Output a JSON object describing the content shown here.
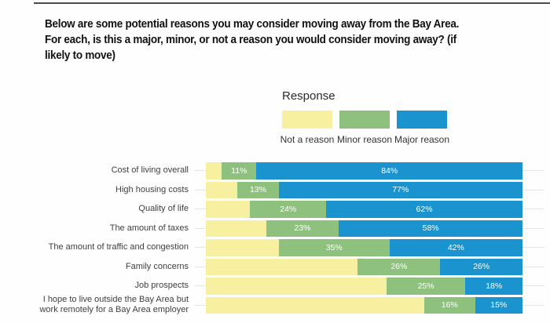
{
  "title": "Below are some potential reasons you may consider moving away from the Bay Area.\nFor each, is this a major, minor, or not a reason you would consider moving away? (if\nlikely to move)",
  "legend": {
    "title": "Response",
    "items": [
      {
        "label": "Not a reason",
        "color": "#f6f0a0"
      },
      {
        "label": "Minor reason",
        "color": "#8ec17e"
      },
      {
        "label": "Major reason",
        "color": "#1a93ce"
      }
    ]
  },
  "chart_data": {
    "type": "bar",
    "orientation": "horizontal",
    "stacked": true,
    "unit": "percent",
    "axis_range": [
      0,
      100
    ],
    "grid": "row-lines",
    "legend_position": "top-center",
    "categories": [
      "Cost of living overall",
      "High housing costs",
      "Quality of life",
      "The amount of taxes",
      "The amount of traffic and congestion",
      "Family concerns",
      "Job prospects",
      "I hope to live outside the Bay Area but\nwork remotely for a Bay Area employer"
    ],
    "series": [
      {
        "name": "Not a reason",
        "color": "#f6f0a0",
        "values": [
          5,
          10,
          14,
          19,
          23,
          48,
          57,
          69
        ],
        "labels_shown": false
      },
      {
        "name": "Minor reason",
        "color": "#8ec17e",
        "values": [
          11,
          13,
          24,
          23,
          35,
          26,
          25,
          16
        ],
        "labels_shown": true,
        "labels": [
          "11%",
          "13%",
          "24%",
          "23%",
          "35%",
          "26%",
          "25%",
          "16%"
        ]
      },
      {
        "name": "Major reason",
        "color": "#1a93ce",
        "values": [
          84,
          77,
          62,
          58,
          42,
          26,
          18,
          15
        ],
        "labels_shown": true,
        "labels": [
          "84%",
          "77%",
          "62%",
          "58%",
          "42%",
          "26%",
          "18%",
          "15%"
        ]
      }
    ]
  }
}
